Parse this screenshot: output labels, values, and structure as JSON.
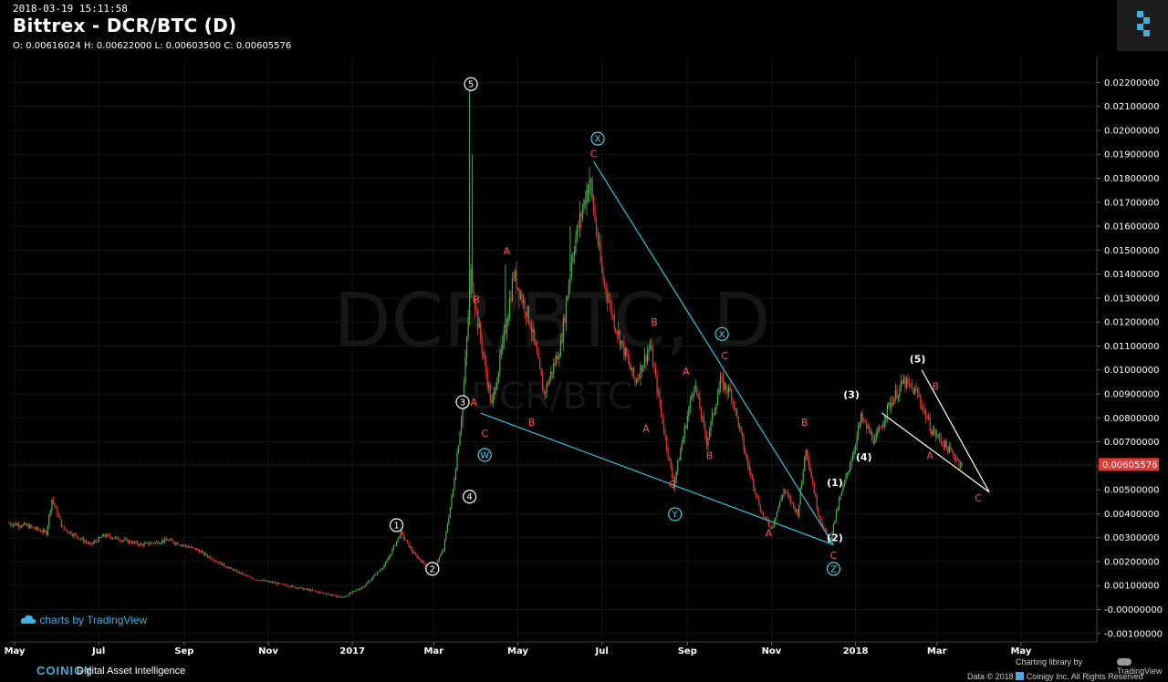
{
  "header": {
    "timestamp": "2018-03-19 15:11:58",
    "title": "Bittrex - DCR/BTC (D)",
    "ohlc": "O: 0.00616024 H: 0.00622000 L: 0.00603500 C: 0.00605576"
  },
  "watermark": {
    "line1": "DCR/BTC, D",
    "line2": "DCR/BTC"
  },
  "credit": {
    "tradingview": "charts by TradingView"
  },
  "footer": {
    "brand": "COINIGY",
    "tagline": "Digital Asset Intelligence",
    "charting_library": "Charting library by",
    "tv_name": "TradingView",
    "copyright": "Data © 2018",
    "copyright2": "Coinigy Inc. All Rights Reserved"
  },
  "colors": {
    "background": "#000000",
    "up": "#4caf50",
    "down": "#e53935",
    "wave_red": "#ff5252",
    "wave_cyan": "#4dd0e1",
    "trendline_cyan": "#26c6da",
    "trendline_white": "#ffffff",
    "grid": "#141414",
    "last_price_bg": "#e53935"
  },
  "chart_data": {
    "type": "candlestick",
    "title": "Bittrex - DCR/BTC (D)",
    "x_tick_labels": [
      "May",
      "Jul",
      "Sep",
      "Nov",
      "2017",
      "Mar",
      "May",
      "Jul",
      "Sep",
      "Nov",
      "2018",
      "Mar",
      "May"
    ],
    "x_ticks": [
      "2016-05-01",
      "2016-07-01",
      "2016-09-01",
      "2016-11-01",
      "2017-01-01",
      "2017-03-01",
      "2017-05-01",
      "2017-07-01",
      "2017-09-01",
      "2017-11-01",
      "2018-01-01",
      "2018-03-01",
      "2018-05-01"
    ],
    "x_range": [
      "2016-04-27",
      "2018-06-25"
    ],
    "y_tick_labels": [
      "0.02200000",
      "0.02100000",
      "0.02000000",
      "0.01900000",
      "0.01800000",
      "0.01700000",
      "0.01600000",
      "0.01500000",
      "0.01400000",
      "0.01300000",
      "0.01200000",
      "0.01100000",
      "0.01000000",
      "0.00900000",
      "0.00800000",
      "0.00700000",
      "0.00600000",
      "0.00500000",
      "0.00400000",
      "0.00300000",
      "0.00200000",
      "0.00100000",
      "-0.00000000",
      "-0.00100000"
    ],
    "y_ticks": [
      0.022,
      0.021,
      0.02,
      0.019,
      0.018,
      0.017,
      0.016,
      0.015,
      0.014,
      0.013,
      0.012,
      0.011,
      0.01,
      0.009,
      0.008,
      0.007,
      0.006,
      0.005,
      0.004,
      0.003,
      0.002,
      0.001,
      0.0,
      -0.001
    ],
    "ylim": [
      -0.00135,
      0.02308
    ],
    "last_price": 0.00605576,
    "last_price_label": "0.00605576",
    "price_path": [
      [
        "2016-04-27",
        0.0036
      ],
      [
        "2016-05-10",
        0.0035
      ],
      [
        "2016-05-24",
        0.0032
      ],
      [
        "2016-05-28",
        0.0046
      ],
      [
        "2016-06-05",
        0.0034
      ],
      [
        "2016-06-25",
        0.0027
      ],
      [
        "2016-07-05",
        0.0031
      ],
      [
        "2016-08-01",
        0.0027
      ],
      [
        "2016-08-20",
        0.0029
      ],
      [
        "2016-09-10",
        0.0025
      ],
      [
        "2016-10-01",
        0.0018
      ],
      [
        "2016-10-20",
        0.0013
      ],
      [
        "2016-11-15",
        0.001
      ],
      [
        "2016-12-10",
        0.0007
      ],
      [
        "2016-12-25",
        0.0005
      ],
      [
        "2017-01-10",
        0.001
      ],
      [
        "2017-01-25",
        0.0019
      ],
      [
        "2017-02-05",
        0.0032
      ],
      [
        "2017-02-15",
        0.0023
      ],
      [
        "2017-02-28",
        0.0016
      ],
      [
        "2017-03-08",
        0.0025
      ],
      [
        "2017-03-15",
        0.005
      ],
      [
        "2017-03-22",
        0.0085
      ],
      [
        "2017-03-28",
        0.014
      ],
      [
        "2017-04-02",
        0.012
      ],
      [
        "2017-04-12",
        0.0085
      ],
      [
        "2017-04-20",
        0.011
      ],
      [
        "2017-04-28",
        0.014
      ],
      [
        "2017-05-10",
        0.012
      ],
      [
        "2017-05-20",
        0.009
      ],
      [
        "2017-06-01",
        0.011
      ],
      [
        "2017-06-10",
        0.015
      ],
      [
        "2017-06-22",
        0.018
      ],
      [
        "2017-07-01",
        0.014
      ],
      [
        "2017-07-10",
        0.012
      ],
      [
        "2017-07-25",
        0.0095
      ],
      [
        "2017-08-05",
        0.011
      ],
      [
        "2017-08-15",
        0.0075
      ],
      [
        "2017-08-22",
        0.0052
      ],
      [
        "2017-08-30",
        0.0075
      ],
      [
        "2017-09-06",
        0.0095
      ],
      [
        "2017-09-15",
        0.007
      ],
      [
        "2017-09-25",
        0.0095
      ],
      [
        "2017-10-03",
        0.009
      ],
      [
        "2017-10-15",
        0.006
      ],
      [
        "2017-10-25",
        0.004
      ],
      [
        "2017-11-01",
        0.0034
      ],
      [
        "2017-11-10",
        0.005
      ],
      [
        "2017-11-20",
        0.004
      ],
      [
        "2017-11-26",
        0.0068
      ],
      [
        "2017-12-05",
        0.004
      ],
      [
        "2017-12-13",
        0.0028
      ],
      [
        "2017-12-20",
        0.0045
      ],
      [
        "2017-12-30",
        0.0065
      ],
      [
        "2018-01-05",
        0.008
      ],
      [
        "2018-01-15",
        0.007
      ],
      [
        "2018-01-25",
        0.0085
      ],
      [
        "2018-02-05",
        0.0095
      ],
      [
        "2018-02-15",
        0.009
      ],
      [
        "2018-02-25",
        0.0075
      ],
      [
        "2018-03-05",
        0.007
      ],
      [
        "2018-03-12",
        0.0065
      ],
      [
        "2018-03-19",
        0.00605576
      ]
    ],
    "wick_highs": [
      [
        "2017-03-27",
        0.022
      ],
      [
        "2017-03-29",
        0.019
      ],
      [
        "2017-04-22",
        0.0144
      ],
      [
        "2017-06-08",
        0.016
      ],
      [
        "2017-06-24",
        0.018
      ],
      [
        "2017-06-21",
        0.017
      ]
    ],
    "trendlines": [
      {
        "color": "cyan",
        "points": [
          [
            "2017-04-04",
            0.0082
          ],
          [
            "2017-12-16",
            0.0027
          ]
        ]
      },
      {
        "color": "cyan",
        "points": [
          [
            "2017-06-25",
            0.0187
          ],
          [
            "2017-12-16",
            0.0027
          ]
        ]
      },
      {
        "color": "white",
        "points": [
          [
            "2018-01-20",
            0.0082
          ],
          [
            "2018-04-08",
            0.0049
          ]
        ]
      },
      {
        "color": "white",
        "points": [
          [
            "2018-02-18",
            0.01
          ],
          [
            "2018-04-08",
            0.0049
          ]
        ]
      }
    ],
    "wave_labels": [
      {
        "text": "5",
        "x": "2017-03-28",
        "y": 0.02193,
        "style": "circle-white"
      },
      {
        "text": "3",
        "x": "2017-03-22",
        "y": 0.00866,
        "style": "circle-white"
      },
      {
        "text": "4",
        "x": "2017-03-27",
        "y": 0.00471,
        "style": "circle-white"
      },
      {
        "text": "1",
        "x": "2017-02-02",
        "y": 0.00352,
        "style": "circle-white"
      },
      {
        "text": "2",
        "x": "2017-02-28",
        "y": 0.0017,
        "style": "circle-white"
      },
      {
        "text": "W",
        "x": "2017-04-07",
        "y": 0.00645,
        "style": "circle-cyan"
      },
      {
        "text": "X",
        "x": "2017-06-28",
        "y": 0.01965,
        "style": "circle-cyan"
      },
      {
        "text": "Y",
        "x": "2017-08-23",
        "y": 0.00398,
        "style": "circle-cyan"
      },
      {
        "text": "X",
        "x": "2017-09-26",
        "y": 0.0115,
        "style": "circle-cyan"
      },
      {
        "text": "Z",
        "x": "2017-12-16",
        "y": 0.0017,
        "style": "circle-cyan"
      },
      {
        "text": "A",
        "x": "2017-03-30",
        "y": 0.00866,
        "style": "red"
      },
      {
        "text": "B",
        "x": "2017-04-01",
        "y": 0.01293,
        "style": "red"
      },
      {
        "text": "C",
        "x": "2017-04-07",
        "y": 0.00736,
        "style": "red"
      },
      {
        "text": "A",
        "x": "2017-04-23",
        "y": 0.01497,
        "style": "red"
      },
      {
        "text": "B",
        "x": "2017-05-11",
        "y": 0.00782,
        "style": "red"
      },
      {
        "text": "C",
        "x": "2017-06-25",
        "y": 0.01903,
        "style": "red"
      },
      {
        "text": "B",
        "x": "2017-08-08",
        "y": 0.012,
        "style": "red"
      },
      {
        "text": "A",
        "x": "2017-08-02",
        "y": 0.00755,
        "style": "red"
      },
      {
        "text": "C",
        "x": "2017-08-21",
        "y": 0.00523,
        "style": "red"
      },
      {
        "text": "A",
        "x": "2017-08-31",
        "y": 0.00996,
        "style": "red"
      },
      {
        "text": "B",
        "x": "2017-09-17",
        "y": 0.00643,
        "style": "red"
      },
      {
        "text": "C",
        "x": "2017-09-28",
        "y": 0.0106,
        "style": "red"
      },
      {
        "text": "A",
        "x": "2017-10-30",
        "y": 0.00319,
        "style": "red"
      },
      {
        "text": "B",
        "x": "2017-11-25",
        "y": 0.00782,
        "style": "red"
      },
      {
        "text": "C",
        "x": "2017-12-16",
        "y": 0.00226,
        "style": "red"
      },
      {
        "text": "(1)",
        "x": "2017-12-17",
        "y": 0.00531,
        "style": "white"
      },
      {
        "text": "(2)",
        "x": "2017-12-17",
        "y": 0.003,
        "style": "white"
      },
      {
        "text": "(3)",
        "x": "2017-12-29",
        "y": 0.00899,
        "style": "white"
      },
      {
        "text": "(4)",
        "x": "2018-01-07",
        "y": 0.00638,
        "style": "white"
      },
      {
        "text": "(5)",
        "x": "2018-02-15",
        "y": 0.01046,
        "style": "white"
      },
      {
        "text": "B",
        "x": "2018-02-28",
        "y": 0.00932,
        "style": "red"
      },
      {
        "text": "A",
        "x": "2018-02-24",
        "y": 0.00643,
        "style": "red"
      },
      {
        "text": "C",
        "x": "2018-03-31",
        "y": 0.00466,
        "style": "red"
      }
    ],
    "grid": true
  }
}
